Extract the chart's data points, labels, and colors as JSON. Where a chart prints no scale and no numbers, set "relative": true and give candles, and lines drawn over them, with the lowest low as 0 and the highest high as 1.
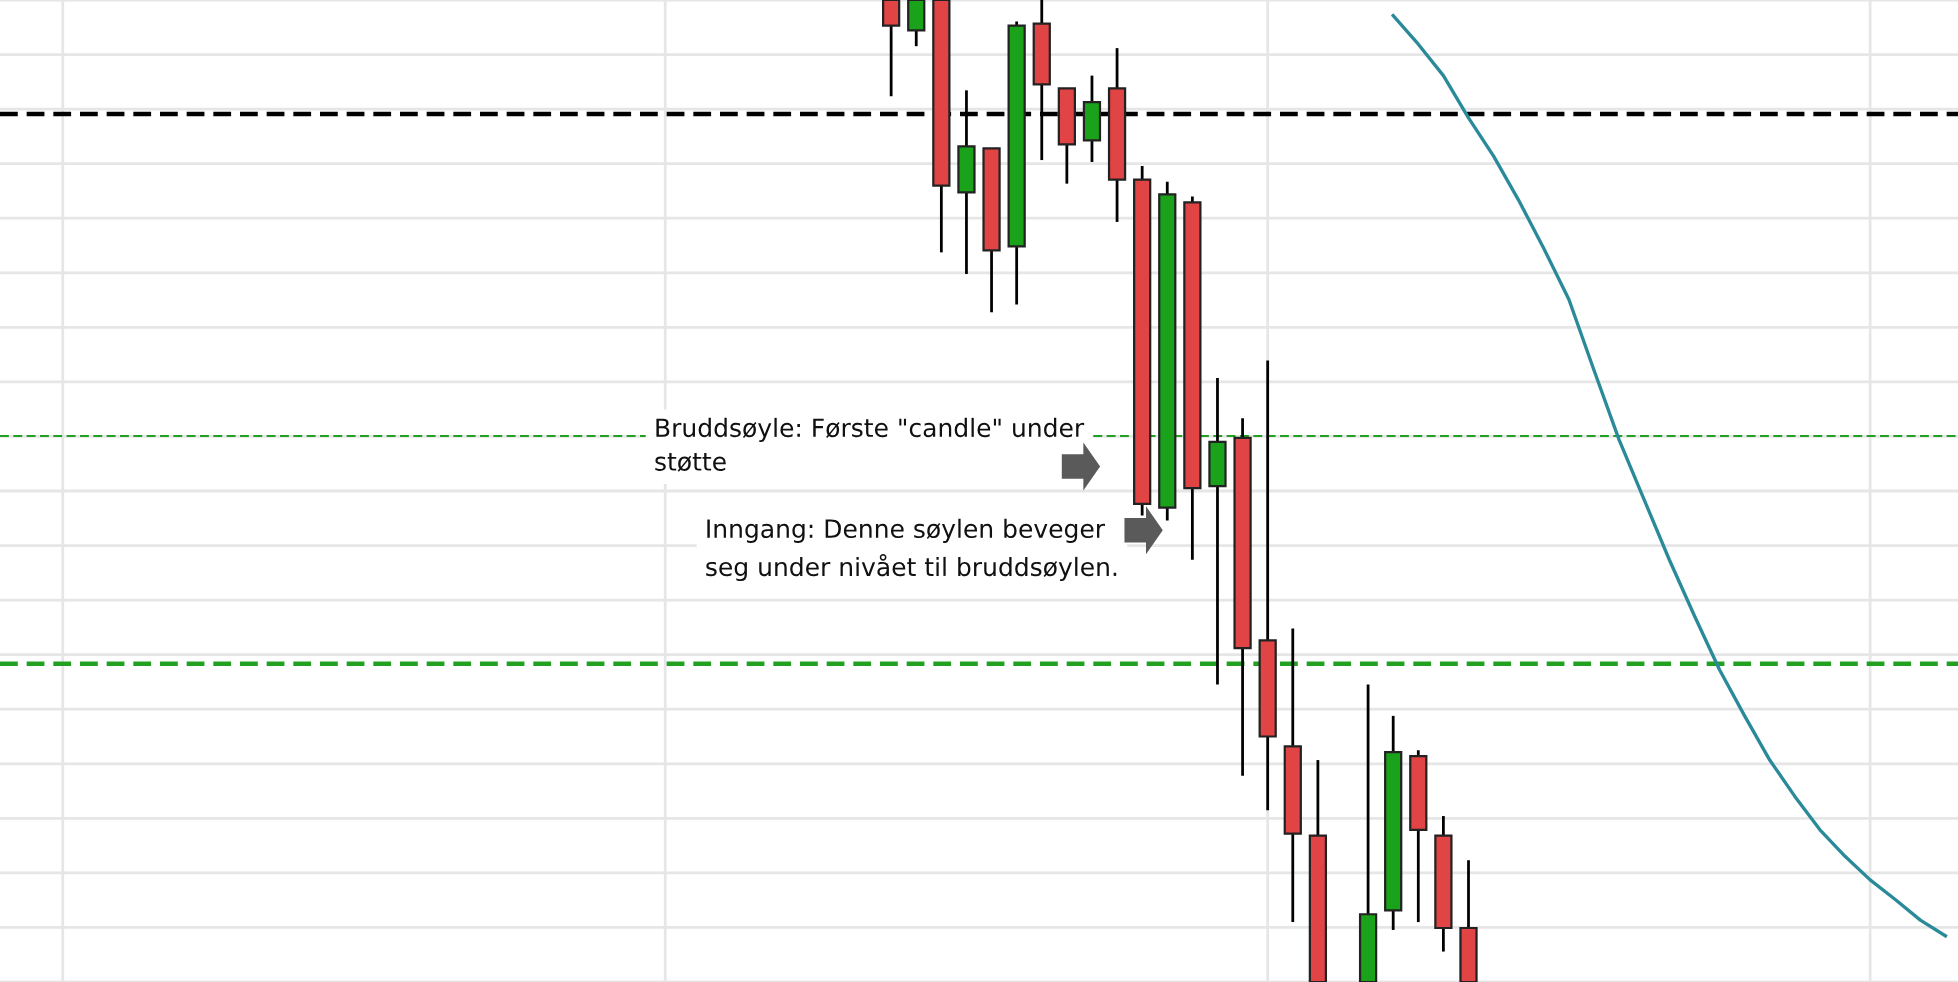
{
  "chart_data": {
    "type": "candlestick",
    "relative": true,
    "grid": true,
    "categories": [
      null,
      null,
      null,
      null,
      null,
      null,
      null,
      null,
      null,
      null,
      null,
      null,
      null,
      null,
      null,
      null,
      null,
      null,
      null,
      null,
      null,
      null,
      null,
      null,
      null,
      null,
      null,
      null,
      null,
      null,
      null,
      null,
      null,
      null,
      null,
      null,
      null,
      null,
      null,
      null,
      null,
      null,
      null,
      null,
      null,
      null,
      null,
      null,
      null,
      null,
      null,
      null,
      null,
      null,
      null,
      null,
      null,
      null,
      null,
      null,
      null,
      null,
      null,
      null,
      null,
      null,
      null,
      null,
      null,
      null,
      null,
      null,
      null,
      null,
      null,
      null,
      null,
      null
    ],
    "ohlc": [
      null,
      null,
      null,
      null,
      null,
      null,
      null,
      null,
      null,
      null,
      null,
      null,
      null,
      null,
      null,
      null,
      null,
      null,
      null,
      null,
      null,
      null,
      null,
      null,
      null,
      null,
      null,
      null,
      null,
      null,
      null,
      null,
      null,
      null,
      null,
      [
        1,
        1,
        0.902,
        0.974
      ],
      [
        0.969,
        1,
        0.953,
        1
      ],
      [
        1,
        1,
        0.743,
        0.811
      ],
      [
        0.804,
        0.908,
        0.721,
        0.851
      ],
      [
        0.849,
        0.849,
        0.682,
        0.745
      ],
      [
        0.749,
        0.978,
        0.69,
        0.974
      ],
      [
        0.976,
        1,
        0.837,
        0.914
      ],
      [
        0.91,
        0.91,
        0.813,
        0.853
      ],
      [
        0.857,
        0.923,
        0.835,
        0.896
      ],
      [
        0.91,
        0.951,
        0.774,
        0.817
      ],
      [
        0.817,
        0.831,
        0.475,
        0.487
      ],
      [
        0.483,
        0.815,
        0.47,
        0.802
      ],
      [
        0.794,
        0.8,
        0.43,
        0.503
      ],
      [
        0.505,
        0.615,
        0.303,
        0.55
      ],
      [
        0.554,
        0.574,
        0.21,
        0.34
      ],
      [
        0.348,
        0.633,
        0.175,
        0.25
      ],
      [
        0.24,
        0.36,
        0.061,
        0.151
      ],
      [
        0.149,
        0.226,
        0,
        0
      ],
      null,
      [
        0,
        0.303,
        0,
        0.069
      ],
      [
        0.073,
        0.271,
        0.053,
        0.234
      ],
      [
        0.23,
        0.236,
        0.061,
        0.155
      ],
      [
        0.149,
        0.169,
        0.031,
        0.055
      ],
      [
        0.055,
        0.124,
        0,
        0
      ],
      null,
      null,
      null,
      null,
      null,
      null,
      null,
      null,
      null,
      null,
      null,
      null,
      null,
      null,
      null,
      null,
      null,
      null,
      null
    ],
    "colors": [
      null,
      null,
      null,
      null,
      null,
      null,
      null,
      null,
      null,
      null,
      null,
      null,
      null,
      null,
      null,
      null,
      null,
      null,
      null,
      null,
      null,
      null,
      null,
      null,
      null,
      null,
      null,
      null,
      null,
      null,
      null,
      null,
      null,
      null,
      null,
      "#e04444",
      "#1aa31a",
      "#e04444",
      "#1aa31a",
      "#e04444",
      "#1aa31a",
      "#e04444",
      "#e04444",
      "#1aa31a",
      "#e04444",
      "#e04444",
      "#1aa31a",
      "#e04444",
      "#1aa31a",
      "#e04444",
      "#e04444",
      "#e04444",
      "#e04444",
      null,
      "#1aa31a",
      "#1aa31a",
      "#e04444",
      "#e04444",
      "#e04444",
      null,
      null,
      null,
      null,
      null,
      null,
      null,
      null,
      null,
      null,
      null,
      null,
      null,
      null,
      null,
      null,
      null,
      null,
      null
    ],
    "series": [
      {
        "type": "line",
        "color": "#2a8a9a",
        "values": [
          null,
          null,
          null,
          null,
          null,
          null,
          null,
          null,
          null,
          null,
          null,
          null,
          null,
          null,
          null,
          null,
          null,
          null,
          null,
          null,
          null,
          null,
          null,
          null,
          null,
          null,
          null,
          null,
          null,
          null,
          null,
          null,
          null,
          null,
          null,
          null,
          null,
          null,
          null,
          null,
          null,
          null,
          null,
          null,
          null,
          null,
          null,
          null,
          null,
          null,
          null,
          null,
          null,
          null,
          null,
          0.984,
          0.955,
          0.923,
          0.88,
          0.841,
          0.796,
          0.747,
          0.695,
          0.623,
          0.552,
          0.491,
          0.43,
          0.373,
          0.318,
          0.271,
          0.226,
          0.189,
          0.155,
          0.128,
          0.104,
          0.084,
          0.063,
          0.047
        ]
      }
    ],
    "ref_lines": [
      {
        "axis": "y",
        "value": 0.884,
        "color": "#000000",
        "line_style": "dashed"
      },
      {
        "axis": "y",
        "value": 0.556,
        "color": "#22a022",
        "line_style": "dashed"
      },
      {
        "axis": "y",
        "value": 0.324,
        "color": "#22a022",
        "line_style": "dashed"
      }
    ],
    "annotations": [
      "Bruddsøyle: Første \"candle\" under\nstøtte",
      "Inngang: Denne søylen beveger\nseg under nivået til bruddsøylen."
    ]
  }
}
